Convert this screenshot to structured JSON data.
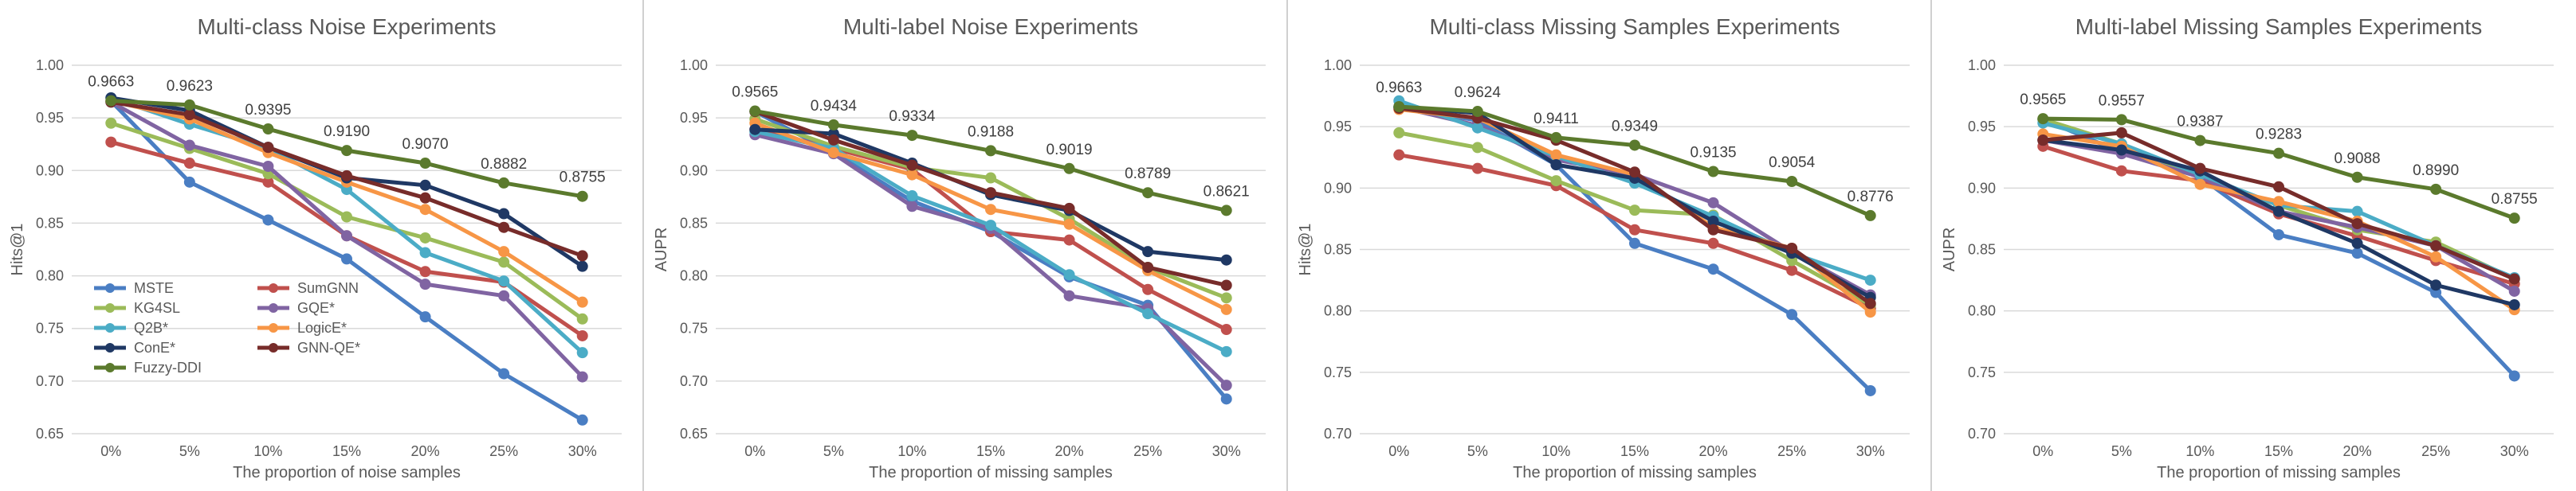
{
  "chart_data": [
    {
      "type": "line",
      "title": "Multi-class Noise Experiments",
      "xlabel": "The proportion of noise samples",
      "ylabel": "Hits@1",
      "categories": [
        "0%",
        "5%",
        "10%",
        "15%",
        "20%",
        "25%",
        "30%"
      ],
      "ylim": [
        0.65,
        1.0
      ],
      "yticks": [
        "0.65",
        "0.70",
        "0.75",
        "0.80",
        "0.85",
        "0.90",
        "0.95",
        "1.00"
      ],
      "grid": true,
      "legend": "bottom-left",
      "annotations": [
        "0.9663",
        "0.9623",
        "0.9395",
        "0.9190",
        "0.9070",
        "0.8882",
        "0.8755"
      ],
      "series": [
        {
          "name": "MSTE",
          "color": "#4a7ec3",
          "values": [
            0.966,
            0.889,
            0.853,
            0.816,
            0.761,
            0.707,
            0.663
          ]
        },
        {
          "name": "SumGNN",
          "color": "#c0504d",
          "values": [
            0.927,
            0.907,
            0.889,
            0.838,
            0.804,
            0.794,
            0.743
          ]
        },
        {
          "name": "KG4SL",
          "color": "#9bbb59",
          "values": [
            0.945,
            0.921,
            0.897,
            0.856,
            0.836,
            0.813,
            0.759
          ]
        },
        {
          "name": "GQE*",
          "color": "#8064a2",
          "values": [
            0.965,
            0.924,
            0.904,
            0.838,
            0.792,
            0.781,
            0.704
          ]
        },
        {
          "name": "Q2B*",
          "color": "#4bacc6",
          "values": [
            0.969,
            0.944,
            0.921,
            0.882,
            0.822,
            0.795,
            0.727
          ]
        },
        {
          "name": "LogicE*",
          "color": "#f79646",
          "values": [
            0.966,
            0.949,
            0.917,
            0.889,
            0.863,
            0.823,
            0.775
          ]
        },
        {
          "name": "ConE*",
          "color": "#1f3864",
          "values": [
            0.969,
            0.957,
            0.922,
            0.893,
            0.886,
            0.859,
            0.809
          ]
        },
        {
          "name": "GNN-QE*",
          "color": "#772c2a",
          "values": [
            0.965,
            0.953,
            0.922,
            0.895,
            0.874,
            0.846,
            0.819
          ]
        },
        {
          "name": "Fuzzy-DDI",
          "color": "#5b7a2d",
          "values": [
            0.9663,
            0.9623,
            0.9395,
            0.919,
            0.907,
            0.8882,
            0.8755
          ]
        }
      ]
    },
    {
      "type": "line",
      "title": "Multi-label Noise Experiments",
      "xlabel": "The proportion of missing samples",
      "ylabel": "AUPR",
      "categories": [
        "0%",
        "5%",
        "10%",
        "15%",
        "20%",
        "25%",
        "30%"
      ],
      "ylim": [
        0.65,
        1.0
      ],
      "yticks": [
        "0.65",
        "0.70",
        "0.75",
        "0.80",
        "0.85",
        "0.90",
        "0.95",
        "1.00"
      ],
      "grid": true,
      "annotations": [
        "0.9565",
        "0.9434",
        "0.9334",
        "0.9188",
        "0.9019",
        "0.8789",
        "0.8621"
      ],
      "series": [
        {
          "name": "MSTE",
          "color": "#4a7ec3",
          "values": [
            0.956,
            0.917,
            0.871,
            0.842,
            0.799,
            0.772,
            0.683
          ]
        },
        {
          "name": "SumGNN",
          "color": "#c0504d",
          "values": [
            0.939,
            0.921,
            0.901,
            0.842,
            0.834,
            0.787,
            0.749
          ]
        },
        {
          "name": "KG4SL",
          "color": "#9bbb59",
          "values": [
            0.949,
            0.923,
            0.903,
            0.893,
            0.854,
            0.808,
            0.779
          ]
        },
        {
          "name": "GQE*",
          "color": "#8064a2",
          "values": [
            0.934,
            0.916,
            0.866,
            0.845,
            0.781,
            0.769,
            0.696
          ]
        },
        {
          "name": "Q2B*",
          "color": "#4bacc6",
          "values": [
            0.937,
            0.921,
            0.876,
            0.848,
            0.801,
            0.764,
            0.728
          ]
        },
        {
          "name": "LogicE*",
          "color": "#f79646",
          "values": [
            0.945,
            0.917,
            0.896,
            0.863,
            0.849,
            0.805,
            0.768
          ]
        },
        {
          "name": "ConE*",
          "color": "#1f3864",
          "values": [
            0.939,
            0.935,
            0.907,
            0.877,
            0.862,
            0.823,
            0.815
          ]
        },
        {
          "name": "GNN-QE*",
          "color": "#772c2a",
          "values": [
            0.956,
            0.929,
            0.905,
            0.879,
            0.864,
            0.808,
            0.791
          ]
        },
        {
          "name": "Fuzzy-DDI",
          "color": "#5b7a2d",
          "values": [
            0.9565,
            0.9434,
            0.9334,
            0.9188,
            0.9019,
            0.8789,
            0.8621
          ]
        }
      ]
    },
    {
      "type": "line",
      "title": "Multi-class Missing Samples Experiments",
      "xlabel": "The proportion of missing samples",
      "ylabel": "Hits@1",
      "categories": [
        "0%",
        "5%",
        "10%",
        "15%",
        "20%",
        "25%",
        "30%"
      ],
      "ylim": [
        0.7,
        1.0
      ],
      "yticks": [
        "0.70",
        "0.75",
        "0.80",
        "0.85",
        "0.90",
        "0.95",
        "1.00"
      ],
      "grid": true,
      "annotations": [
        "0.9663",
        "0.9624",
        "0.9411",
        "0.9349",
        "0.9135",
        "0.9054",
        "0.8776"
      ],
      "series": [
        {
          "name": "MSTE",
          "color": "#4a7ec3",
          "values": [
            0.966,
            0.955,
            0.919,
            0.855,
            0.834,
            0.797,
            0.735
          ]
        },
        {
          "name": "SumGNN",
          "color": "#c0504d",
          "values": [
            0.927,
            0.916,
            0.902,
            0.866,
            0.855,
            0.833,
            0.802
          ]
        },
        {
          "name": "KG4SL",
          "color": "#9bbb59",
          "values": [
            0.945,
            0.933,
            0.906,
            0.882,
            0.878,
            0.841,
            0.805
          ]
        },
        {
          "name": "GQE*",
          "color": "#8064a2",
          "values": [
            0.966,
            0.951,
            0.923,
            0.911,
            0.888,
            0.848,
            0.813
          ]
        },
        {
          "name": "Q2B*",
          "color": "#4bacc6",
          "values": [
            0.971,
            0.949,
            0.926,
            0.904,
            0.877,
            0.847,
            0.825
          ]
        },
        {
          "name": "LogicE*",
          "color": "#f79646",
          "values": [
            0.964,
            0.957,
            0.927,
            0.911,
            0.868,
            0.851,
            0.799
          ]
        },
        {
          "name": "ConE*",
          "color": "#1f3864",
          "values": [
            0.966,
            0.961,
            0.919,
            0.908,
            0.873,
            0.847,
            0.811
          ]
        },
        {
          "name": "GNN-QE*",
          "color": "#772c2a",
          "values": [
            0.965,
            0.957,
            0.939,
            0.913,
            0.866,
            0.851,
            0.806
          ]
        },
        {
          "name": "Fuzzy-DDI",
          "color": "#5b7a2d",
          "values": [
            0.9663,
            0.9624,
            0.9411,
            0.9349,
            0.9135,
            0.9054,
            0.8776
          ]
        }
      ]
    },
    {
      "type": "line",
      "title": "Multi-label Missing Samples Experiments",
      "xlabel": "The proportion of missing samples",
      "ylabel": "AUPR",
      "categories": [
        "0%",
        "5%",
        "10%",
        "15%",
        "20%",
        "25%",
        "30%"
      ],
      "ylim": [
        0.7,
        1.0
      ],
      "yticks": [
        "0.70",
        "0.75",
        "0.80",
        "0.85",
        "0.90",
        "0.95",
        "1.00"
      ],
      "grid": true,
      "annotations": [
        "0.9565",
        "0.9557",
        "0.9387",
        "0.9283",
        "0.9088",
        "0.8990",
        "0.8755"
      ],
      "series": [
        {
          "name": "MSTE",
          "color": "#4a7ec3",
          "values": [
            0.956,
            0.929,
            0.909,
            0.862,
            0.847,
            0.815,
            0.747
          ]
        },
        {
          "name": "SumGNN",
          "color": "#c0504d",
          "values": [
            0.934,
            0.914,
            0.906,
            0.879,
            0.861,
            0.841,
            0.822
          ]
        },
        {
          "name": "KG4SL",
          "color": "#9bbb59",
          "values": [
            0.956,
            0.936,
            0.909,
            0.886,
            0.866,
            0.856,
            0.826
          ]
        },
        {
          "name": "GQE*",
          "color": "#8064a2",
          "values": [
            0.939,
            0.928,
            0.909,
            0.881,
            0.868,
            0.853,
            0.816
          ]
        },
        {
          "name": "Q2B*",
          "color": "#4bacc6",
          "values": [
            0.953,
            0.936,
            0.911,
            0.886,
            0.881,
            0.853,
            0.827
          ]
        },
        {
          "name": "LogicE*",
          "color": "#f79646",
          "values": [
            0.944,
            0.934,
            0.903,
            0.889,
            0.873,
            0.844,
            0.801
          ]
        },
        {
          "name": "ConE*",
          "color": "#1f3864",
          "values": [
            0.939,
            0.931,
            0.914,
            0.881,
            0.855,
            0.821,
            0.805
          ]
        },
        {
          "name": "GNN-QE*",
          "color": "#772c2a",
          "values": [
            0.939,
            0.945,
            0.916,
            0.901,
            0.871,
            0.853,
            0.826
          ]
        },
        {
          "name": "Fuzzy-DDI",
          "color": "#5b7a2d",
          "values": [
            0.9565,
            0.9557,
            0.9387,
            0.9283,
            0.9088,
            0.899,
            0.8755
          ]
        }
      ]
    }
  ]
}
